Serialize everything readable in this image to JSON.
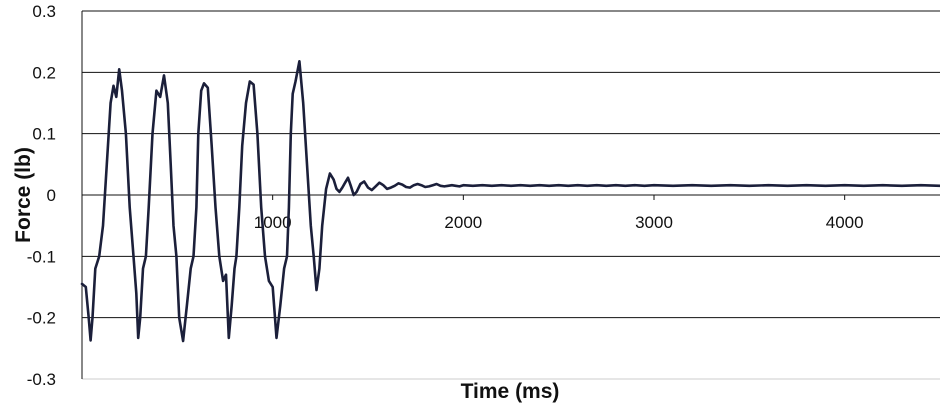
{
  "colors": {
    "series": "#1b1f3a",
    "gridline": "#111111",
    "axis": "#111111",
    "background": "#ffffff"
  },
  "chart_data": {
    "type": "line",
    "title": "",
    "xlabel": "Time (ms)",
    "ylabel": "Force (lb)",
    "xlim": [
      0,
      4500
    ],
    "ylim": [
      -0.3,
      0.3
    ],
    "x_ticks": [
      1000,
      2000,
      3000,
      4000
    ],
    "x_tick_labels": [
      "1000",
      "2000",
      "3000",
      "4000"
    ],
    "y_ticks": [
      0.3,
      0.2,
      0.1,
      0,
      -0.1,
      -0.2,
      -0.3
    ],
    "y_tick_labels": [
      "0.3",
      "0.2",
      "0.1",
      "0",
      "-0.1",
      "-0.2",
      "-0.3"
    ],
    "grid": "horizontal",
    "legend": "none",
    "series": [
      {
        "x": [
          0,
          20,
          35,
          45,
          55,
          70,
          90,
          110,
          130,
          150,
          165,
          180,
          195,
          210,
          230,
          250,
          270,
          285,
          295,
          305,
          320,
          335,
          350,
          370,
          390,
          410,
          430,
          450,
          465,
          480,
          495,
          510,
          530,
          550,
          570,
          585,
          600,
          610,
          625,
          640,
          660,
          680,
          700,
          720,
          740,
          755,
          770,
          785,
          800,
          810,
          825,
          840,
          860,
          880,
          900,
          920,
          940,
          960,
          980,
          1000,
          1020,
          1040,
          1060,
          1075,
          1085,
          1095,
          1105,
          1120,
          1140,
          1160,
          1180,
          1200,
          1215,
          1230,
          1245,
          1260,
          1280,
          1300,
          1320,
          1335,
          1350,
          1365,
          1380,
          1395,
          1410,
          1425,
          1440,
          1460,
          1480,
          1500,
          1520,
          1540,
          1560,
          1580,
          1600,
          1620,
          1640,
          1660,
          1680,
          1700,
          1720,
          1740,
          1760,
          1780,
          1800,
          1820,
          1840,
          1860,
          1880,
          1900,
          1920,
          1940,
          1960,
          1980,
          2000,
          2050,
          2100,
          2150,
          2200,
          2250,
          2300,
          2350,
          2400,
          2450,
          2500,
          2550,
          2600,
          2650,
          2700,
          2750,
          2800,
          2850,
          2900,
          2950,
          3000,
          3100,
          3200,
          3300,
          3400,
          3500,
          3600,
          3700,
          3800,
          3900,
          4000,
          4100,
          4200,
          4300,
          4400,
          4500
        ],
        "y": [
          -0.145,
          -0.15,
          -0.2,
          -0.237,
          -0.2,
          -0.12,
          -0.1,
          -0.05,
          0.05,
          0.15,
          0.178,
          0.16,
          0.205,
          0.17,
          0.1,
          -0.02,
          -0.1,
          -0.16,
          -0.233,
          -0.2,
          -0.12,
          -0.1,
          -0.02,
          0.1,
          0.17,
          0.16,
          0.195,
          0.15,
          0.05,
          -0.05,
          -0.1,
          -0.2,
          -0.238,
          -0.18,
          -0.12,
          -0.1,
          -0.02,
          0.1,
          0.17,
          0.182,
          0.175,
          0.08,
          -0.02,
          -0.1,
          -0.14,
          -0.13,
          -0.233,
          -0.18,
          -0.12,
          -0.1,
          -0.02,
          0.08,
          0.15,
          0.185,
          0.18,
          0.1,
          -0.02,
          -0.1,
          -0.14,
          -0.15,
          -0.233,
          -0.18,
          -0.12,
          -0.1,
          -0.02,
          0.1,
          0.165,
          0.185,
          0.218,
          0.15,
          0.05,
          -0.05,
          -0.1,
          -0.155,
          -0.12,
          -0.05,
          0.01,
          0.035,
          0.025,
          0.01,
          0.005,
          0.012,
          0.02,
          0.028,
          0.015,
          0.0,
          0.005,
          0.018,
          0.022,
          0.012,
          0.008,
          0.014,
          0.02,
          0.016,
          0.01,
          0.012,
          0.015,
          0.019,
          0.017,
          0.013,
          0.012,
          0.016,
          0.018,
          0.016,
          0.013,
          0.014,
          0.016,
          0.018,
          0.015,
          0.014,
          0.015,
          0.016,
          0.015,
          0.014,
          0.016,
          0.015,
          0.016,
          0.015,
          0.016,
          0.015,
          0.016,
          0.015,
          0.016,
          0.015,
          0.016,
          0.015,
          0.016,
          0.015,
          0.016,
          0.015,
          0.016,
          0.015,
          0.016,
          0.015,
          0.016,
          0.015,
          0.016,
          0.015,
          0.016,
          0.015,
          0.016,
          0.015,
          0.016,
          0.015,
          0.016,
          0.015,
          0.016,
          0.015,
          0.016,
          0.015
        ]
      }
    ]
  }
}
